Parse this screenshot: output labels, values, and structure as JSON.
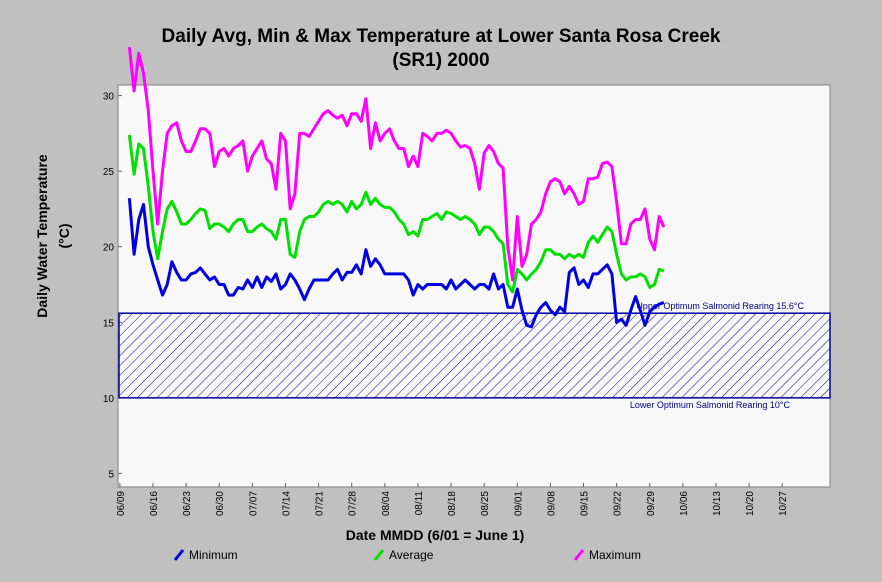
{
  "chart_data": {
    "type": "line",
    "title": [
      "Daily Avg, Min & Max Temperature at Lower Santa Rosa Creek",
      "(SR1) 2000"
    ],
    "x_label": "Date MMDD (6/01 = June 1)",
    "y_label": [
      "Daily Water Temperature",
      "(°C)"
    ],
    "x": [
      11,
      12,
      13,
      14,
      15,
      16,
      17,
      18,
      19,
      20,
      21,
      22,
      23,
      24,
      25,
      26,
      27,
      28,
      29,
      30,
      31,
      32,
      33,
      34,
      35,
      36,
      37,
      38,
      39,
      40,
      41,
      42,
      43,
      44,
      45,
      46,
      47,
      48,
      49,
      50,
      51,
      52,
      53,
      54,
      55,
      56,
      57,
      58,
      59,
      60,
      61,
      62,
      63,
      64,
      65,
      66,
      67,
      68,
      69,
      70,
      71,
      72,
      73,
      74,
      75,
      76,
      77,
      78,
      79,
      80,
      81,
      82,
      83,
      84,
      85,
      86,
      87,
      88,
      89,
      90,
      91,
      92,
      93,
      94,
      95,
      96,
      97,
      98,
      99,
      100,
      101,
      102,
      103,
      104,
      105,
      106,
      107,
      108,
      109,
      110,
      111,
      112,
      113,
      114,
      115,
      116,
      117,
      118,
      119,
      120,
      121,
      122,
      123,
      124
    ],
    "series": [
      {
        "name": "Minimum",
        "color": "#0000e0",
        "values": [
          23.2,
          19.5,
          21.8,
          22.8,
          20,
          18.8,
          17.8,
          16.8,
          17.5,
          19,
          18.3,
          17.8,
          17.8,
          18.2,
          18.3,
          18.6,
          18.2,
          17.8,
          18,
          17.5,
          17.5,
          16.8,
          16.8,
          17.3,
          17.2,
          17.8,
          17.3,
          18,
          17.3,
          18,
          17.7,
          18.2,
          17.2,
          17.5,
          18.2,
          17.8,
          17.2,
          16.5,
          17.2,
          17.8,
          17.8,
          17.8,
          17.8,
          18.2,
          18.5,
          17.8,
          18.3,
          18.3,
          18.8,
          18.2,
          19.8,
          18.7,
          19.2,
          18.8,
          18.2,
          18.2,
          18.2,
          18.2,
          18.2,
          17.8,
          16.8,
          17.5,
          17.2,
          17.5,
          17.5,
          17.5,
          17.5,
          17.2,
          17.8,
          17.2,
          17.5,
          17.8,
          17.5,
          17.2,
          17.5,
          17.5,
          17.2,
          18.2,
          17.2,
          17.5,
          16,
          16,
          17.2,
          15.8,
          14.8,
          14.7,
          15.5,
          16,
          16.3,
          15.8,
          15.5,
          16,
          15.7,
          18.3,
          18.6,
          17.5,
          17.8,
          17.3,
          18.2,
          18.2,
          18.5,
          18.8,
          18.2,
          15,
          15.2,
          14.8,
          15.8,
          16.7,
          15.8,
          14.8,
          15.7,
          16,
          16.2,
          16.3
        ]
      },
      {
        "name": "Average",
        "color": "#00e000",
        "values": [
          27.4,
          24.8,
          26.8,
          26.5,
          24,
          21,
          19.2,
          21,
          22.5,
          23,
          22.3,
          21.5,
          21.5,
          21.8,
          22.2,
          22.5,
          22.4,
          21.2,
          21.5,
          21.5,
          21.3,
          21,
          21.5,
          21.8,
          21.8,
          21,
          21,
          21.3,
          21.5,
          21.2,
          21,
          20.5,
          21.8,
          21.8,
          19.5,
          19.3,
          21,
          21.8,
          22,
          22,
          22.3,
          22.8,
          23,
          22.8,
          23,
          22.8,
          22.3,
          23,
          22.5,
          22.8,
          23.6,
          22.8,
          23.2,
          22.8,
          22.6,
          22.6,
          22.3,
          21.8,
          21.5,
          20.8,
          21,
          20.7,
          21.8,
          21.8,
          22,
          22.2,
          21.8,
          22.3,
          22.2,
          22,
          21.8,
          22,
          21.8,
          21.5,
          20.8,
          21.3,
          21.3,
          21,
          20.5,
          20.2,
          17.5,
          17,
          18.5,
          18.2,
          17.8,
          18.2,
          18.5,
          19,
          19.8,
          19.8,
          19.5,
          19.5,
          19.2,
          19.5,
          19.3,
          19.5,
          19.3,
          20.3,
          20.7,
          20.3,
          20.8,
          21.3,
          21,
          19.5,
          18.2,
          17.8,
          18,
          18,
          18.2,
          18,
          17.3,
          17.5,
          18.5,
          18.4
        ]
      },
      {
        "name": "Maximum",
        "color": "#ff00ff",
        "values": [
          33.2,
          30.3,
          32.8,
          31.5,
          29,
          25,
          21.5,
          25,
          27.5,
          28,
          28.2,
          27,
          26.3,
          26.3,
          27,
          27.8,
          27.8,
          27.5,
          25.3,
          26.3,
          26.5,
          26,
          26.5,
          26.7,
          27,
          25,
          26,
          26.5,
          27,
          25.8,
          25.5,
          23.8,
          27.5,
          27,
          22.5,
          23.5,
          27.5,
          27.5,
          27.3,
          27.8,
          28.3,
          28.8,
          29,
          28.7,
          28.5,
          28.7,
          28,
          28.8,
          28.8,
          28.3,
          29.8,
          26.5,
          28.2,
          27,
          27.5,
          27.8,
          27,
          26.5,
          26.5,
          25.3,
          26,
          25.3,
          27.5,
          27.3,
          27,
          27.5,
          27.5,
          27.7,
          27.5,
          27,
          26.6,
          26.7,
          26.5,
          25.5,
          23.8,
          26.2,
          26.7,
          26.3,
          25.5,
          25.2,
          20,
          17.8,
          22,
          18.7,
          19.5,
          21.5,
          21.8,
          22.3,
          23.5,
          24.3,
          24.5,
          24.3,
          23.5,
          24,
          23.5,
          22.8,
          23,
          24.5,
          24.5,
          24.6,
          25.5,
          25.6,
          25.3,
          23,
          20.2,
          20.2,
          21.5,
          21.8,
          21.8,
          22.5,
          20.5,
          19.8,
          22,
          21.3
        ]
      }
    ],
    "band": {
      "ymin": 10,
      "ymax": 15.6,
      "color": "#0000a0",
      "upper_label": "Upper Optimum Salmonid Rearing 15.6°C",
      "lower_label": "Lower Optimum Salmonid Rearing 10°C"
    },
    "xlim": [
      8.6,
      159.1
    ],
    "ylim": [
      4.1,
      30.7
    ],
    "yticks": [
      5,
      10,
      15,
      20,
      25,
      30
    ],
    "xticks": [
      {
        "value": 9,
        "label": "06/09"
      },
      {
        "value": 16,
        "label": "06/16"
      },
      {
        "value": 23,
        "label": "06/23"
      },
      {
        "value": 30,
        "label": "06/30"
      },
      {
        "value": 37,
        "label": "07/07"
      },
      {
        "value": 44,
        "label": "07/14"
      },
      {
        "value": 51,
        "label": "07/21"
      },
      {
        "value": 58,
        "label": "07/28"
      },
      {
        "value": 65,
        "label": "08/04"
      },
      {
        "value": 72,
        "label": "08/11"
      },
      {
        "value": 79,
        "label": "08/18"
      },
      {
        "value": 86,
        "label": "08/25"
      },
      {
        "value": 93,
        "label": "09/01"
      },
      {
        "value": 100,
        "label": "09/08"
      },
      {
        "value": 107,
        "label": "09/15"
      },
      {
        "value": 114,
        "label": "09/22"
      },
      {
        "value": 121,
        "label": "09/29"
      },
      {
        "value": 128,
        "label": "10/06"
      },
      {
        "value": 135,
        "label": "10/13"
      },
      {
        "value": 142,
        "label": "10/20"
      },
      {
        "value": 149,
        "label": "10/27"
      }
    ],
    "grid": false,
    "legend": "bottom"
  }
}
